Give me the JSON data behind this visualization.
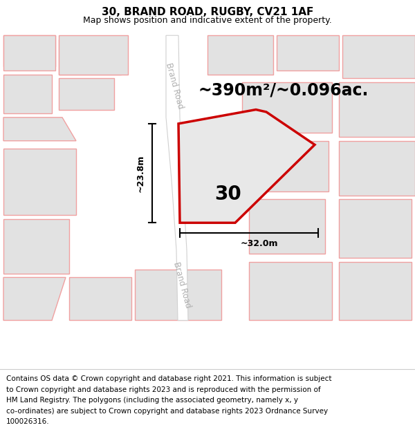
{
  "title": "30, BRAND ROAD, RUGBY, CV21 1AF",
  "subtitle": "Map shows position and indicative extent of the property.",
  "footer_lines": [
    "Contains OS data © Crown copyright and database right 2021. This information is subject",
    "to Crown copyright and database rights 2023 and is reproduced with the permission of",
    "HM Land Registry. The polygons (including the associated geometry, namely x, y",
    "co-ordinates) are subject to Crown copyright and database rights 2023 Ordnance Survey",
    "100026316."
  ],
  "area_label": "~390m²/~0.096ac.",
  "number_label": "30",
  "dim_vertical": "~23.8m",
  "dim_horizontal": "~32.0m",
  "road_label_upper": "Brand Road",
  "road_label_lower": "Brand Road",
  "map_bg": "#f2f2f2",
  "building_fill": "#e2e2e2",
  "building_edge": "#f0a0a0",
  "property_fill": "#e8e8e8",
  "property_edge": "#cc0000",
  "road_fill": "#ffffff",
  "road_edge": "#d0d0d0",
  "road_label_color": "#b0b0b0",
  "title_fontsize": 11,
  "subtitle_fontsize": 9,
  "footer_fontsize": 7.5,
  "area_fontsize": 17,
  "number_fontsize": 20,
  "dim_fontsize": 9
}
